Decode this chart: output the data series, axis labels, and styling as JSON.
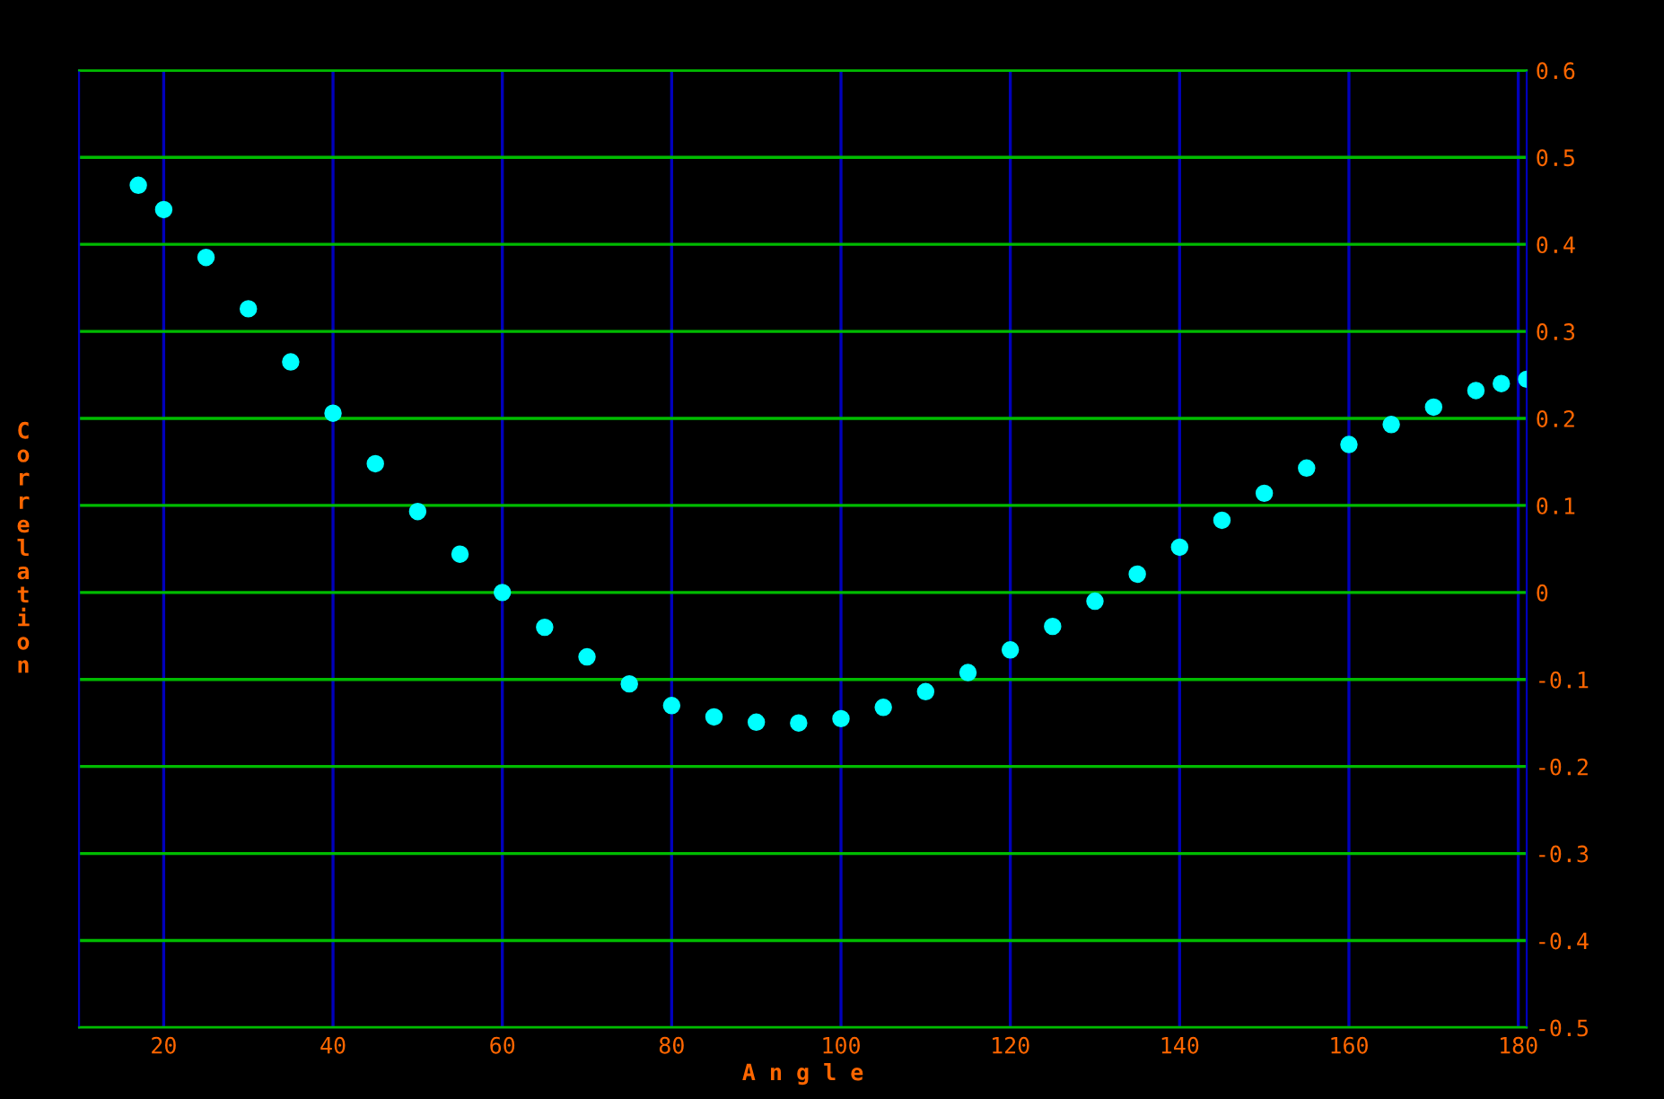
{
  "chart_data": {
    "type": "scatter",
    "xlabel": "A n g l e",
    "ylabel": "C\no\nr\nr\ne\nl\na\nt\ni\no\nn",
    "x": [
      17,
      20,
      25,
      30,
      35,
      40,
      45,
      50,
      55,
      60,
      65,
      70,
      75,
      80,
      85,
      90,
      95,
      100,
      105,
      110,
      115,
      120,
      125,
      130,
      135,
      140,
      145,
      150,
      155,
      160,
      165,
      170,
      175,
      178,
      181
    ],
    "series": [
      {
        "color": "#00ffff",
        "values": [
          0.468,
          0.44,
          0.385,
          0.326,
          0.265,
          0.206,
          0.148,
          0.093,
          0.044,
          0.0,
          -0.04,
          -0.074,
          -0.105,
          -0.13,
          -0.143,
          -0.149,
          -0.15,
          -0.145,
          -0.132,
          -0.114,
          -0.092,
          -0.066,
          -0.039,
          -0.01,
          0.021,
          0.052,
          0.083,
          0.114,
          0.143,
          0.17,
          0.193,
          0.213,
          0.232,
          0.24,
          0.245
        ]
      }
    ],
    "xlim": [
      10,
      181
    ],
    "ylim": [
      -0.5,
      0.6
    ],
    "xticks": [
      20,
      40,
      60,
      80,
      100,
      120,
      140,
      160,
      180
    ],
    "yticks": [
      -0.5,
      -0.4,
      -0.3,
      -0.2,
      -0.1,
      0,
      0.1,
      0.2,
      0.3,
      0.4,
      0.5,
      0.6
    ],
    "grid": true,
    "marker": "circle",
    "legend": false
  }
}
